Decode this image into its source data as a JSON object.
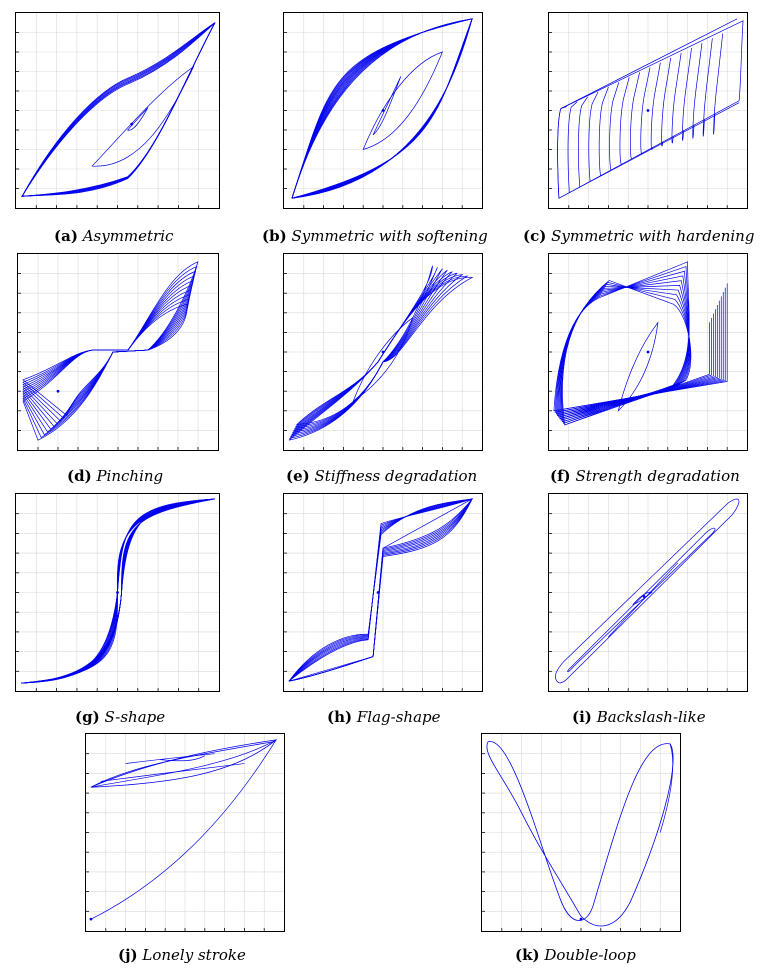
{
  "colors": {
    "curve": "#0000ee",
    "grid": "#d9d9d9",
    "frame": "#000000"
  },
  "panels": [
    {
      "id": "a",
      "tag": "(a)",
      "name": "Asymmetric"
    },
    {
      "id": "b",
      "tag": "(b)",
      "name": "Symmetric with softening"
    },
    {
      "id": "c",
      "tag": "(c)",
      "name": "Symmetric with hardening"
    },
    {
      "id": "d",
      "tag": "(d)",
      "name": "Pinching"
    },
    {
      "id": "e",
      "tag": "(e)",
      "name": "Stiffness degradation"
    },
    {
      "id": "f",
      "tag": "(f)",
      "name": "Strength degradation"
    },
    {
      "id": "g",
      "tag": "(g)",
      "name": "S-shape"
    },
    {
      "id": "h",
      "tag": "(h)",
      "name": "Flag-shape"
    },
    {
      "id": "i",
      "tag": "(i)",
      "name": "Backslash-like"
    },
    {
      "id": "j",
      "tag": "(j)",
      "name": "Lonely stroke"
    },
    {
      "id": "k",
      "tag": "(k)",
      "name": "Double-loop"
    }
  ]
}
